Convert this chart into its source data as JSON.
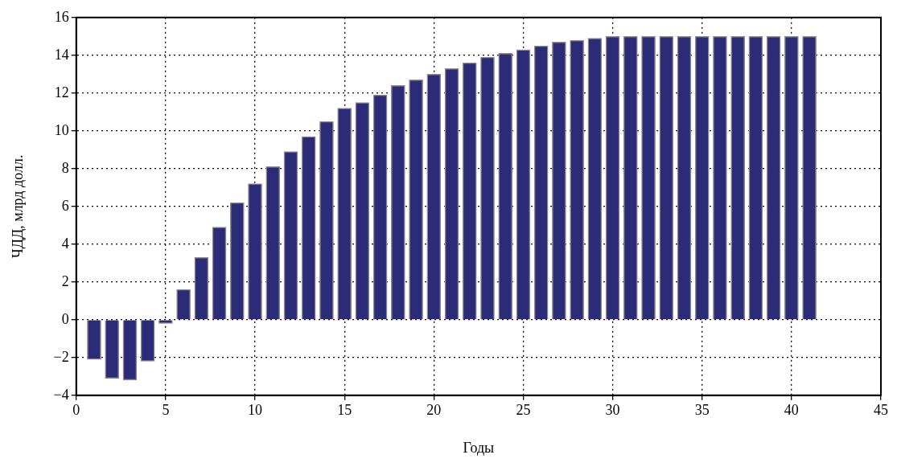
{
  "chart_data": {
    "type": "bar",
    "xlabel": "Годы",
    "ylabel": "ЧДД, млрд долл.",
    "x": [
      1,
      2,
      3,
      4,
      5,
      6,
      7,
      8,
      9,
      10,
      11,
      12,
      13,
      14,
      15,
      16,
      17,
      18,
      19,
      20,
      21,
      22,
      23,
      24,
      25,
      26,
      27,
      28,
      29,
      30,
      31,
      32,
      33,
      34,
      35,
      36,
      37,
      38,
      39,
      40,
      41
    ],
    "values": [
      -2.1,
      -3.1,
      -3.2,
      -2.2,
      -0.2,
      1.6,
      3.3,
      4.9,
      6.2,
      7.2,
      8.1,
      8.9,
      9.7,
      10.5,
      11.2,
      11.5,
      11.9,
      12.4,
      12.7,
      13.0,
      13.3,
      13.6,
      13.9,
      14.1,
      14.3,
      14.5,
      14.7,
      14.8,
      14.9,
      15.0,
      15.0,
      15.0,
      15.0,
      15.0,
      15.0,
      15.0,
      15.0,
      15.0,
      15.0,
      15.0,
      15.0
    ],
    "color": "#2b2b78",
    "xlim": [
      0,
      45
    ],
    "xticks": [
      0,
      5,
      10,
      15,
      20,
      25,
      30,
      35,
      40,
      45
    ],
    "ylim": [
      -4,
      16
    ],
    "yticks": [
      -4,
      -2,
      0,
      2,
      4,
      6,
      8,
      10,
      12,
      14,
      16
    ],
    "grid": true
  }
}
